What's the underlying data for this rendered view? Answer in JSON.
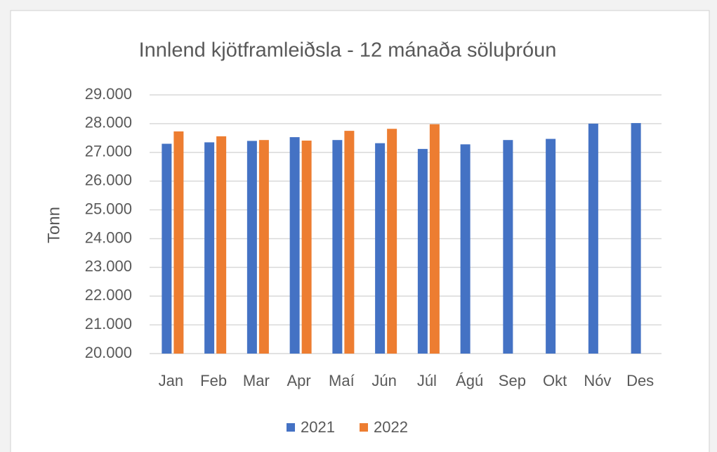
{
  "chart_data": {
    "type": "bar",
    "title": "Innlend kjötframleiðsla - 12 mánaða söluþróun",
    "y_label": "Tonn",
    "categories": [
      "Jan",
      "Feb",
      "Mar",
      "Apr",
      "Maí",
      "Jún",
      "Júl",
      "Ágú",
      "Sep",
      "Okt",
      "Nóv",
      "Des"
    ],
    "series": [
      {
        "name": "2021",
        "color": "#4472c4",
        "values": [
          27300,
          27350,
          27400,
          27530,
          27430,
          27320,
          27120,
          27280,
          27430,
          27470,
          28000,
          28020
        ]
      },
      {
        "name": "2022",
        "color": "#ed7d31",
        "values": [
          27730,
          27560,
          27430,
          27410,
          27750,
          27820,
          27980,
          null,
          null,
          null,
          null,
          null
        ]
      }
    ],
    "ylim": [
      20000,
      29000
    ],
    "yticks": [
      {
        "value": 20000,
        "label": "20.000"
      },
      {
        "value": 21000,
        "label": "21.000"
      },
      {
        "value": 22000,
        "label": "22.000"
      },
      {
        "value": 23000,
        "label": "23.000"
      },
      {
        "value": 24000,
        "label": "24.000"
      },
      {
        "value": 25000,
        "label": "25.000"
      },
      {
        "value": 26000,
        "label": "26.000"
      },
      {
        "value": 27000,
        "label": "27.000"
      },
      {
        "value": 28000,
        "label": "28.000"
      },
      {
        "value": 29000,
        "label": "29.000"
      }
    ],
    "grid": true,
    "legend": "bottom"
  }
}
